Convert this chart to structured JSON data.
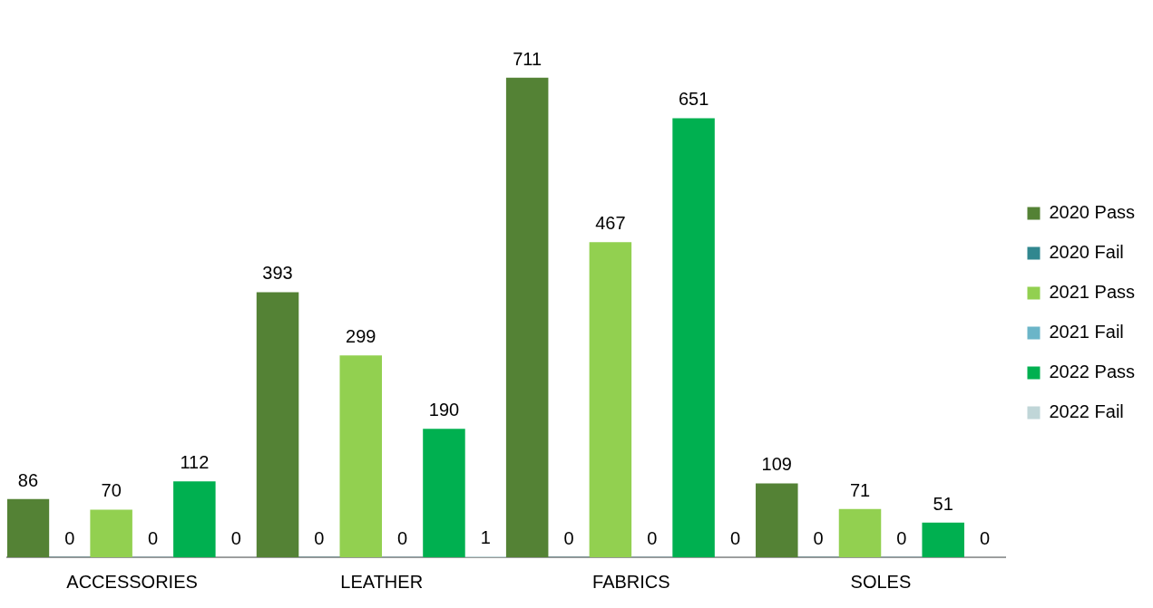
{
  "chart_data": {
    "type": "bar",
    "categories": [
      "ACCESSORIES",
      "LEATHER",
      "FABRICS",
      "SOLES"
    ],
    "series": [
      {
        "name": "2020 Pass",
        "color": "#548235",
        "values": [
          86,
          393,
          711,
          109
        ]
      },
      {
        "name": "2020 Fail",
        "color": "#31878f",
        "values": [
          0,
          0,
          0,
          0
        ]
      },
      {
        "name": "2021 Pass",
        "color": "#92d050",
        "values": [
          70,
          299,
          467,
          71
        ]
      },
      {
        "name": "2021 Fail",
        "color": "#6bb5c8",
        "values": [
          0,
          0,
          0,
          0
        ]
      },
      {
        "name": "2022 Pass",
        "color": "#00b050",
        "values": [
          112,
          190,
          651,
          51
        ]
      },
      {
        "name": "2022 Fail",
        "color": "#c0d6d8",
        "values": [
          0,
          1,
          0,
          0
        ]
      }
    ],
    "data_labels": true,
    "legend": "right",
    "grid": false,
    "tick_labels": "x"
  }
}
